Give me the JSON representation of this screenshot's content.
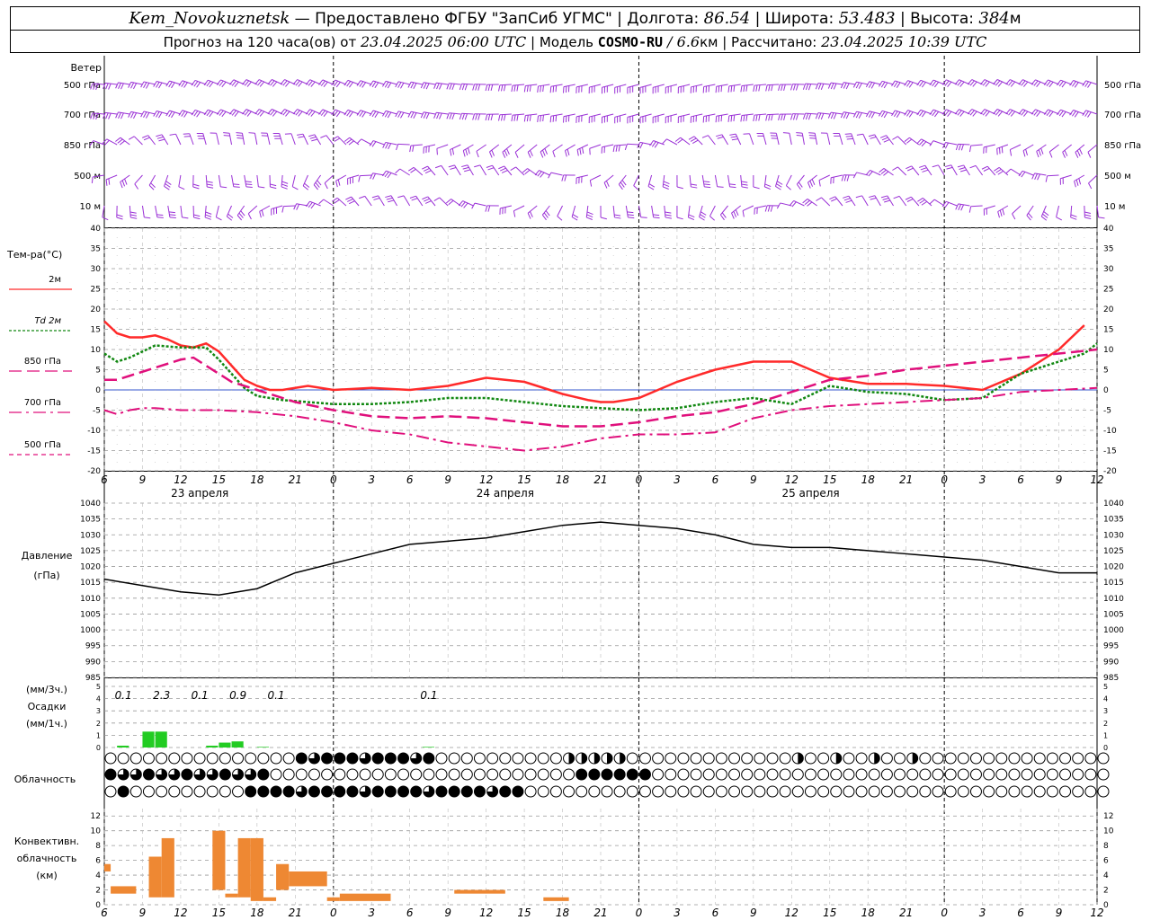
{
  "header": {
    "station": "Kem_Novokuznetsk",
    "provided": " — Предоставлено ФГБУ \"ЗапСиб УГМС\" | Долгота: ",
    "lon": "86.54",
    "lat_label": " | Широта: ",
    "lat": "53.483",
    "alt_label": " | Высота: ",
    "alt": "384",
    "alt_unit": "м",
    "forecast_label": "Прогноз на 120 часа(ов) от ",
    "forecast_from": "23.04.2025 06:00 UTC",
    "model_label": " | Модель ",
    "model": "COSMO-RU",
    "model_sep": " / ",
    "model_res": "6.6",
    "model_res_unit": "км",
    "calc_label": " | Рассчитано: ",
    "calc_time": "23.04.2025 10:39 UTC"
  },
  "wind": {
    "title": "Ветер",
    "levels": [
      "500 гПа",
      "700 гПа",
      "850 гПа",
      "500 м",
      "10  м"
    ]
  },
  "temperature": {
    "title": "Тем-ра(°C)",
    "yticks": [
      40,
      35,
      30,
      25,
      20,
      15,
      10,
      5,
      0,
      -5,
      -10,
      -15,
      -20
    ],
    "legend": [
      {
        "label": "2м",
        "color": "#ff2a2a"
      },
      {
        "label": "Td  2м",
        "color": "#118811"
      },
      {
        "label": "850 гПа",
        "color": "#e0107c"
      },
      {
        "label": "700 гПа",
        "color": "#e0107c"
      },
      {
        "label": "500 гПа",
        "color": "#e0107c"
      }
    ]
  },
  "time_axis": {
    "hour_labels": [
      "6",
      "9",
      "12",
      "15",
      "18",
      "21",
      "0",
      "3",
      "6",
      "9",
      "12",
      "15",
      "18",
      "21",
      "0",
      "3",
      "6",
      "9",
      "12",
      "15",
      "18",
      "21",
      "0",
      "3",
      "6",
      "9",
      "12"
    ],
    "dates": [
      "23 апреля",
      "24 апреля",
      "25 апреля"
    ]
  },
  "pressure": {
    "title_line1": "Давление",
    "title_line2": "(гПа)",
    "yticks": [
      1040,
      1035,
      1030,
      1025,
      1020,
      1015,
      1010,
      1005,
      1000,
      995,
      990,
      985
    ]
  },
  "precip": {
    "title_line1": "(мм/3ч.)",
    "title_line2": "Осадки",
    "title_line3": "(мм/1ч.)",
    "yticks": [
      5,
      4,
      3,
      2,
      1,
      0
    ],
    "labels": [
      {
        "text": "0.1",
        "hour": 1.5
      },
      {
        "text": "2.3",
        "hour": 4.5
      },
      {
        "text": "0.1",
        "hour": 7.5
      },
      {
        "text": "0.9",
        "hour": 10.5
      },
      {
        "text": "0.1",
        "hour": 13.5
      },
      {
        "text": "0.1",
        "hour": 25.5
      }
    ]
  },
  "cloud": {
    "title": "Облачность"
  },
  "convective": {
    "title_line1": "Конвективн.",
    "title_line2": "облачность",
    "title_line3": "(км)",
    "yticks": [
      12,
      10,
      8,
      6,
      4,
      2,
      0
    ]
  },
  "chart_data": {
    "type": "line",
    "x_unit": "hours from 23.04.2025 06:00 UTC",
    "xlim": [
      0,
      78
    ],
    "temperature": {
      "ylim": [
        -20,
        40
      ],
      "series": [
        {
          "name": "2м",
          "x": [
            0,
            1,
            2,
            3,
            4,
            5,
            6,
            7,
            8,
            9,
            10,
            11,
            12,
            13,
            14,
            15,
            16,
            18,
            21,
            24,
            27,
            30,
            33,
            36,
            38,
            39,
            40,
            42,
            45,
            48,
            51,
            54,
            57,
            60,
            63,
            66,
            69,
            72,
            74,
            75,
            77
          ],
          "y": [
            17,
            14,
            13,
            13,
            13.5,
            12.5,
            11,
            10.5,
            11.5,
            9.5,
            6,
            2.5,
            1,
            0,
            0,
            0.5,
            1,
            0,
            0.5,
            0,
            1,
            3,
            2,
            -1,
            -2.5,
            -3,
            -3,
            -2,
            2,
            5,
            7,
            7,
            3,
            1.5,
            1.5,
            1,
            0,
            4,
            8,
            10,
            16
          ]
        },
        {
          "name": "Td  2м",
          "x": [
            0,
            1,
            2,
            3,
            4,
            6,
            8,
            9,
            10,
            11,
            12,
            14,
            18,
            21,
            24,
            27,
            30,
            33,
            36,
            39,
            42,
            45,
            48,
            51,
            54,
            57,
            60,
            63,
            66,
            69,
            72,
            74,
            75,
            77,
            78
          ],
          "y": [
            9,
            7,
            8,
            9.5,
            11,
            10.5,
            10.5,
            7.5,
            4,
            0.5,
            -1.5,
            -2.5,
            -3.5,
            -3.5,
            -3,
            -2,
            -2,
            -3,
            -4,
            -4.5,
            -5,
            -4.5,
            -3,
            -2,
            -3.5,
            1,
            -0.5,
            -1,
            -2.5,
            -2,
            4,
            6,
            7,
            9,
            11.5
          ]
        },
        {
          "name": "850 гПа",
          "x": [
            0,
            1,
            2,
            3,
            4,
            5,
            6,
            7,
            8,
            9,
            10,
            12,
            15,
            18,
            21,
            24,
            27,
            30,
            33,
            36,
            39,
            42,
            45,
            48,
            51,
            54,
            57,
            60,
            63,
            66,
            69,
            72,
            75,
            78
          ],
          "y": [
            2.5,
            2.5,
            3.5,
            4.5,
            5.5,
            6.5,
            7.5,
            8,
            6,
            4,
            2,
            0,
            -3,
            -5,
            -6.5,
            -7,
            -6.5,
            -7,
            -8,
            -9,
            -9,
            -8,
            -6.5,
            -5.5,
            -3.5,
            -0.5,
            2.5,
            3.5,
            5,
            6,
            7,
            8,
            9,
            10
          ]
        },
        {
          "name": "700 гПа",
          "x": [
            0,
            1,
            2,
            3,
            4,
            6,
            9,
            12,
            15,
            18,
            21,
            24,
            27,
            30,
            33,
            36,
            39,
            42,
            45,
            48,
            51,
            54,
            57,
            60,
            63,
            66,
            69,
            72,
            75,
            78
          ],
          "y": [
            -5,
            -6,
            -5,
            -4.5,
            -4.5,
            -5,
            -5,
            -5.5,
            -6.5,
            -8,
            -10,
            -11,
            -13,
            -14,
            -15,
            -14,
            -12,
            -11,
            -11,
            -10.5,
            -7,
            -5,
            -4,
            -3.5,
            -3,
            -2.5,
            -2,
            -0.5,
            0,
            0.5
          ]
        }
      ]
    },
    "pressure": {
      "ylim": [
        985,
        1040
      ],
      "x": [
        0,
        3,
        6,
        9,
        12,
        15,
        18,
        21,
        24,
        27,
        30,
        33,
        36,
        39,
        42,
        45,
        48,
        51,
        54,
        57,
        60,
        63,
        66,
        69,
        72,
        75,
        78
      ],
      "y": [
        1016,
        1014,
        1012,
        1011,
        1013,
        1018,
        1021,
        1024,
        1027,
        1028,
        1029,
        1031,
        1033,
        1034,
        1033,
        1032,
        1030,
        1027,
        1026,
        1026,
        1025,
        1024,
        1023,
        1022,
        1020,
        1018,
        1018
      ]
    },
    "precipitation": {
      "ylim": [
        0,
        5
      ],
      "bars": [
        {
          "x": 1,
          "value": 0.15,
          "color": "#22cc22"
        },
        {
          "x": 3,
          "value": 1.3,
          "color": "#22cc22"
        },
        {
          "x": 4,
          "value": 1.3,
          "color": "#22cc22"
        },
        {
          "x": 8,
          "value": 0.15,
          "color": "#22cc22"
        },
        {
          "x": 9,
          "value": 0.4,
          "color": "#22cc22"
        },
        {
          "x": 10,
          "value": 0.5,
          "color": "#22cc22"
        },
        {
          "x": 12,
          "value": 0.05,
          "color": "#22cc22"
        },
        {
          "x": 25,
          "value": 0.05,
          "color": "#22cc22"
        }
      ]
    },
    "convective": {
      "ylim": [
        0,
        13
      ],
      "bars": [
        {
          "x0": 0,
          "x1": 0.5,
          "bottom": 4.5,
          "top": 5.5
        },
        {
          "x0": 0.5,
          "x1": 2.5,
          "bottom": 1.5,
          "top": 2.5
        },
        {
          "x0": 3.5,
          "x1": 4.5,
          "bottom": 1,
          "top": 6.5
        },
        {
          "x0": 4.5,
          "x1": 5.5,
          "bottom": 1,
          "top": 9
        },
        {
          "x0": 8.5,
          "x1": 9.5,
          "bottom": 2,
          "top": 10
        },
        {
          "x0": 9.5,
          "x1": 10.5,
          "bottom": 1,
          "top": 1.5
        },
        {
          "x0": 10.5,
          "x1": 11.5,
          "bottom": 1,
          "top": 9
        },
        {
          "x0": 11.5,
          "x1": 12.5,
          "bottom": 0.5,
          "top": 9
        },
        {
          "x0": 12.5,
          "x1": 13.5,
          "bottom": 0.5,
          "top": 1
        },
        {
          "x0": 13.5,
          "x1": 14.5,
          "bottom": 2,
          "top": 5.5
        },
        {
          "x0": 14.5,
          "x1": 17.5,
          "bottom": 2.5,
          "top": 4.5
        },
        {
          "x0": 17.5,
          "x1": 18.5,
          "bottom": 0.5,
          "top": 1
        },
        {
          "x0": 18.5,
          "x1": 22.5,
          "bottom": 0.5,
          "top": 1.5
        },
        {
          "x0": 27.5,
          "x1": 31.5,
          "bottom": 1.5,
          "top": 2
        },
        {
          "x0": 34.5,
          "x1": 36.5,
          "bottom": 0.5,
          "top": 1
        }
      ]
    }
  }
}
